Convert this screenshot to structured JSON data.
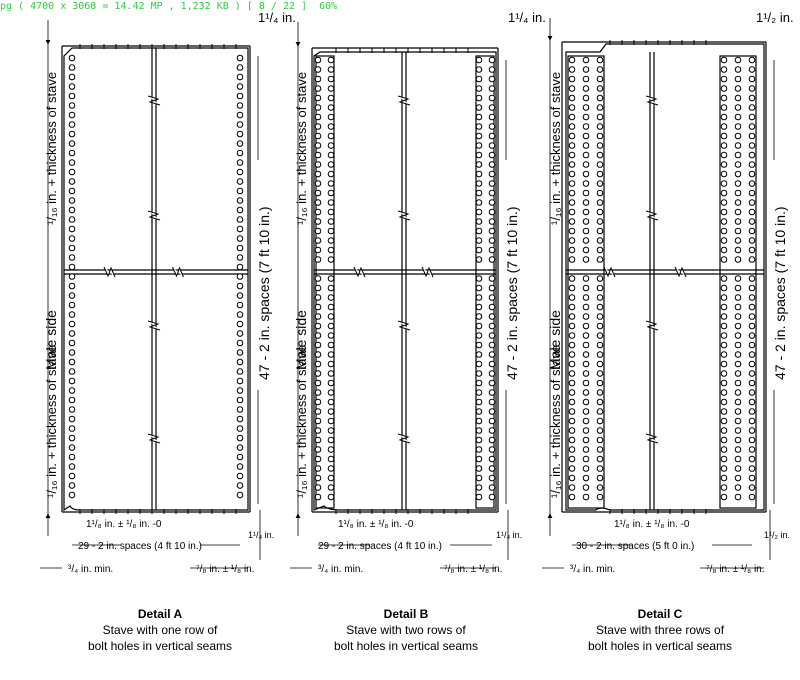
{
  "viewer": {
    "status_text": "pg ( 4700 x 3068 = 14.42 MP , 1,232 KB ) [ 8 / 22 ]  60%"
  },
  "details": [
    {
      "rows": 1,
      "top_dim": "1¹/₄ in.",
      "bottom_right_dim": "1¹/₄ in.",
      "seam_dim": "1¹/₈ in. ± ¹/₈ in. -0",
      "horiz_spaces": "29 - 2 in. spaces (4 ft 10 in.)",
      "left_min": "³/₄ in. min.",
      "right_dim": "⁷/₈ in. ± ¹/₈ in.",
      "vert_spaces": "47 - 2 in. spaces (7 ft 10 in.)",
      "male_side": "Male side",
      "thickness_upper": "¹/₁₆ in. + thickness of stave",
      "thickness_lower": "¹/₁₆ in. + thickness of stave",
      "caption_title": "Detail A",
      "caption_line1": "Stave with one row of",
      "caption_line2": "bolt holes in vertical seams"
    },
    {
      "rows": 2,
      "top_dim": "1¹/₄ in.",
      "bottom_right_dim": "1¹/₄ in.",
      "seam_dim": "1¹/₈ in. ± ¹/₈ in. -0",
      "horiz_spaces": "29 - 2 in. spaces (4 ft 10 in.)",
      "left_min": "³/₄ in. min.",
      "right_dim": "⁷/₈ in. ± ¹/₈ in.",
      "vert_spaces": "47 - 2 in. spaces (7 ft 10 in.)",
      "male_side": "Male side",
      "thickness_upper": "¹/₁₆ in. + thickness of stave",
      "thickness_lower": "¹/₁₆ in. + thickness of stave",
      "caption_title": "Detail B",
      "caption_line1": "Stave with two rows of",
      "caption_line2": "bolt holes in vertical seams"
    },
    {
      "rows": 3,
      "top_dim": "1¹/₂ in.",
      "bottom_right_dim": "1¹/₂ in.",
      "seam_dim": "1¹/₈ in. ± ¹/₈ in. -0",
      "horiz_spaces": "30 - 2 in. spaces (5 ft 0 in.)",
      "left_min": "³/₄ in. min.",
      "right_dim": "⁷/₈ in. ± ¹/₈ in.",
      "vert_spaces": "47 - 2 in. spaces (7 ft 10 in.)",
      "male_side": "Male side",
      "thickness_upper": "¹/₁₆ in. + thickness of stave",
      "thickness_lower": "¹/₁₆ in. + thickness of stave",
      "caption_title": "Detail C",
      "caption_line1": "Stave with three rows of",
      "caption_line2": "bolt holes in vertical seams"
    }
  ]
}
